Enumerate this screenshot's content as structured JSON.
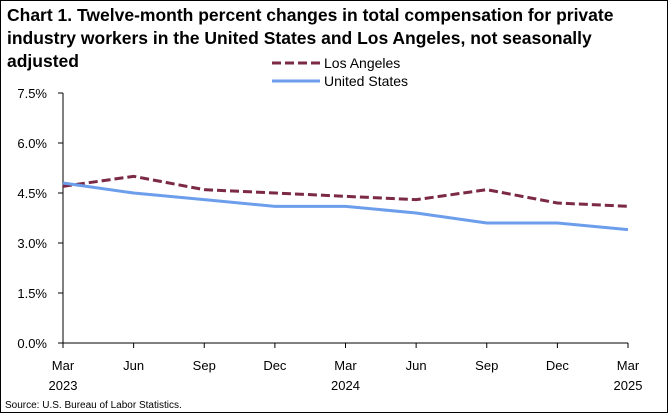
{
  "title_line1": "Chart 1. Twelve-month percent changes in total compensation for private",
  "title_line2": "industry workers in the United States and Los Angeles, not seasonally adjusted",
  "source": "Source: U.S. Bureau of Labor Statistics.",
  "chart_data": {
    "type": "line",
    "title": "Chart 1. Twelve-month percent changes in total compensation for private industry workers in the United States and Los Angeles, not seasonally adjusted",
    "xlabel": "",
    "ylabel": "",
    "x": [
      "Mar 2023",
      "Jun",
      "Sep",
      "Dec",
      "Mar 2024",
      "Jun",
      "Sep",
      "Dec",
      "Mar 2025"
    ],
    "x_tick_lines": [
      [
        "Mar",
        "2023"
      ],
      [
        "Jun"
      ],
      [
        "Sep"
      ],
      [
        "Dec"
      ],
      [
        "Mar",
        "2024"
      ],
      [
        "Jun"
      ],
      [
        "Sep"
      ],
      [
        "Dec"
      ],
      [
        "Mar",
        "2025"
      ]
    ],
    "ylim": [
      0,
      7.5
    ],
    "y_ticks": [
      0,
      1.5,
      3.0,
      4.5,
      6.0,
      7.5
    ],
    "y_tick_labels": [
      "0.0%",
      "1.5%",
      "3.0%",
      "4.5%",
      "6.0%",
      "7.5%"
    ],
    "grid": false,
    "legend_position": "top-center",
    "series": [
      {
        "name": "Los Angeles",
        "values": [
          4.7,
          5.0,
          4.6,
          4.5,
          4.4,
          4.3,
          4.6,
          4.2,
          4.1
        ],
        "color": "#7b2946",
        "style": "dashed"
      },
      {
        "name": "United States",
        "values": [
          4.8,
          4.5,
          4.3,
          4.1,
          4.1,
          3.9,
          3.6,
          3.6,
          3.4
        ],
        "color": "#6d9eeb",
        "style": "solid"
      }
    ]
  }
}
